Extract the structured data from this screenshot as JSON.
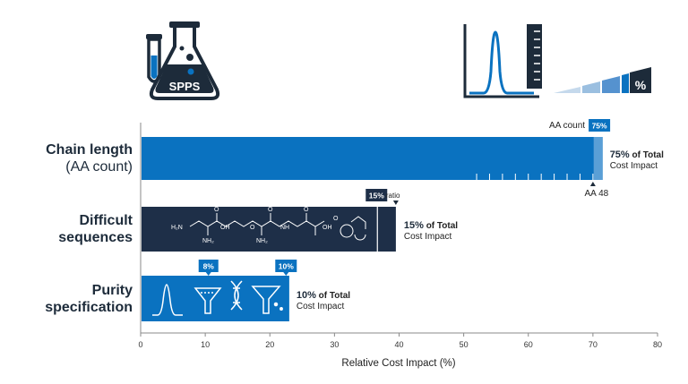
{
  "header": {
    "flask_label": "SPPS",
    "percent_symbol": "%"
  },
  "chart_data": {
    "type": "bar",
    "orientation": "horizontal",
    "categories": [
      {
        "line1": "Chain length",
        "line2": "(AA count)"
      },
      {
        "line1": "Difficult",
        "line2": "sequences"
      },
      {
        "line1": "Purity",
        "line2": "specification"
      }
    ],
    "values": [
      75,
      15,
      10
    ],
    "value_labels": [
      {
        "pct": "75%",
        "rest1": " of Total",
        "rest2": "Cost Impact"
      },
      {
        "pct": "15%",
        "rest1": " of Total",
        "rest2": "Cost Impact"
      },
      {
        "pct": "10%",
        "rest1": " of Total",
        "rest2": "Cost Impact"
      }
    ],
    "xlabel": "Relative Cost Impact (%)",
    "xlim": [
      0,
      80
    ],
    "xticks": [
      0,
      10,
      20,
      30,
      40,
      50,
      60,
      70,
      80
    ],
    "bar_ends": [
      71.5,
      39.5,
      23
    ],
    "colors": {
      "chain": "#0a72c0",
      "chain_marker": "#5a9fd6",
      "difficult": "#1e2f48",
      "purity": "#0a72c0",
      "badge": "#0a72c0",
      "badge_dark": "#1e2f48"
    },
    "annotations": {
      "aa_count_label": "AA count",
      "aa_count_badge": "75%",
      "aa_count_badge_x": 71,
      "aa48_label": "AA 48",
      "aa48_x": 70,
      "difficult_badge": "15%",
      "difficult_badge_x": 36.5,
      "ratio_label": "ratio",
      "ratio_x": 39.5,
      "purity_badge_1": "8%",
      "purity_badge_1_x": 10.5,
      "purity_badge_2": "10%",
      "purity_badge_2_x": 22.5
    },
    "chem_labels": [
      "H₂N",
      "O",
      "OH",
      "O",
      "NH₂",
      "O",
      "NH₂",
      "NH",
      "O",
      "OH",
      "O"
    ]
  }
}
